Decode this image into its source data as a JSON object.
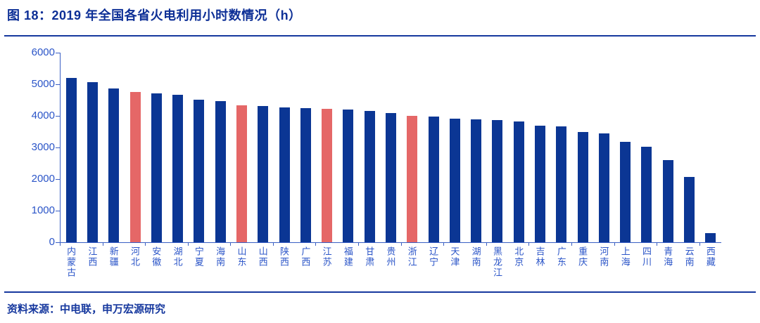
{
  "header": {
    "title": "图 18：2019 年全国各省火电利用小时数情况（h）"
  },
  "footer": {
    "source": "资料来源：中电联，申万宏源研究"
  },
  "colors": {
    "bar": "#0b3694",
    "highlight": "#e56767",
    "axis": "#3a5fc4",
    "tick_label": "#2b55c8",
    "title_text": "#0d2f96",
    "rule": "#16389e"
  },
  "chart_data": {
    "type": "bar",
    "title": "图 18：2019 年全国各省火电利用小时数情况（h）",
    "xlabel": "",
    "ylabel": "",
    "categories": [
      "内蒙古",
      "江西",
      "新疆",
      "河北",
      "安徽",
      "湖北",
      "宁夏",
      "海南",
      "山东",
      "山西",
      "陕西",
      "广西",
      "江苏",
      "福建",
      "甘肃",
      "贵州",
      "浙江",
      "辽宁",
      "天津",
      "湖南",
      "黑龙江",
      "北京",
      "吉林",
      "广东",
      "重庆",
      "河南",
      "上海",
      "四川",
      "青海",
      "云南",
      "西藏"
    ],
    "values": [
      5200,
      5070,
      4870,
      4760,
      4720,
      4670,
      4520,
      4470,
      4340,
      4310,
      4270,
      4250,
      4230,
      4200,
      4150,
      4100,
      3990,
      3970,
      3910,
      3890,
      3870,
      3820,
      3690,
      3670,
      3490,
      3440,
      3170,
      3020,
      2600,
      2060,
      280
    ],
    "highlighted_categories": [
      "河北",
      "山东",
      "江苏",
      "浙江"
    ],
    "ylim": [
      0,
      6000
    ],
    "yticks": [
      0,
      1000,
      2000,
      3000,
      4000,
      5000,
      6000
    ],
    "grid": false,
    "legend": "none"
  }
}
